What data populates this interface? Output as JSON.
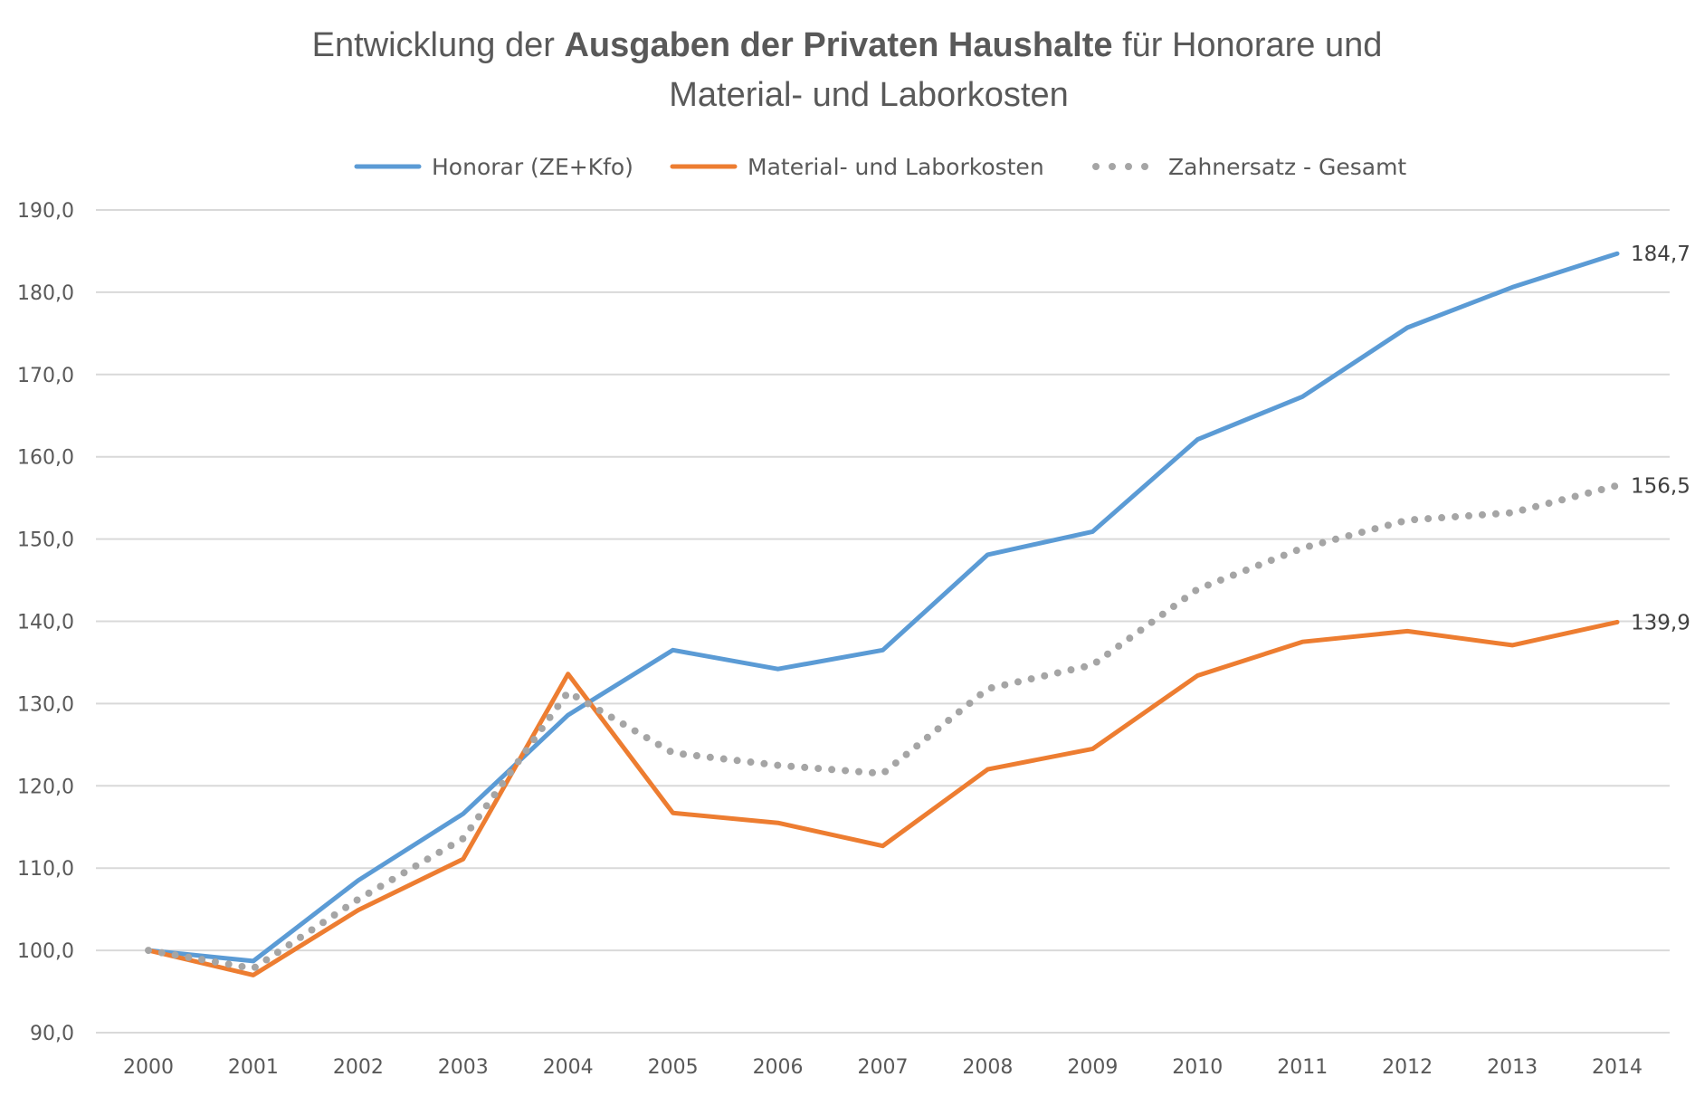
{
  "chart_data": {
    "type": "line",
    "title": {
      "line1_prefix": "Entwicklung der ",
      "line1_bold": "Ausgaben der Privaten Haushalte",
      "line1_suffix": " für Honorare und",
      "line2": "Material- und Laborkosten"
    },
    "xlabel": "",
    "ylabel": "",
    "ylim": [
      90,
      190
    ],
    "yticks": [
      90,
      100,
      110,
      120,
      130,
      140,
      150,
      160,
      170,
      180,
      190
    ],
    "ytick_labels": [
      "90,0",
      "100,0",
      "110,0",
      "120,0",
      "130,0",
      "140,0",
      "150,0",
      "160,0",
      "170,0",
      "180,0",
      "190,0"
    ],
    "categories": [
      "2000",
      "2001",
      "2002",
      "2003",
      "2004",
      "2005",
      "2006",
      "2007",
      "2008",
      "2009",
      "2010",
      "2011",
      "2012",
      "2013",
      "2014"
    ],
    "grid": true,
    "legend_position": "top",
    "series": [
      {
        "name": "Honorar (ZE+Kfo)",
        "color": "#5b9bd5",
        "style": "solid",
        "values": [
          100.0,
          98.7,
          108.5,
          116.6,
          128.6,
          136.5,
          134.2,
          136.5,
          148.1,
          150.9,
          162.1,
          167.3,
          175.7,
          180.6,
          184.7
        ],
        "end_label": "184,7"
      },
      {
        "name": "Material- und Laborkosten",
        "color": "#ed7d31",
        "style": "solid",
        "values": [
          100.0,
          97.0,
          104.9,
          111.1,
          133.6,
          116.7,
          115.5,
          112.7,
          122.0,
          124.5,
          133.4,
          137.5,
          138.8,
          137.1,
          139.9
        ],
        "end_label": "139,9"
      },
      {
        "name": "Zahnersatz - Gesamt",
        "color": "#a5a5a5",
        "style": "dotted",
        "values": [
          100.0,
          97.8,
          106.2,
          113.6,
          131.4,
          124.0,
          122.5,
          121.5,
          131.8,
          134.7,
          143.9,
          148.9,
          152.3,
          153.2,
          156.5
        ],
        "end_label": "156,5"
      }
    ]
  }
}
